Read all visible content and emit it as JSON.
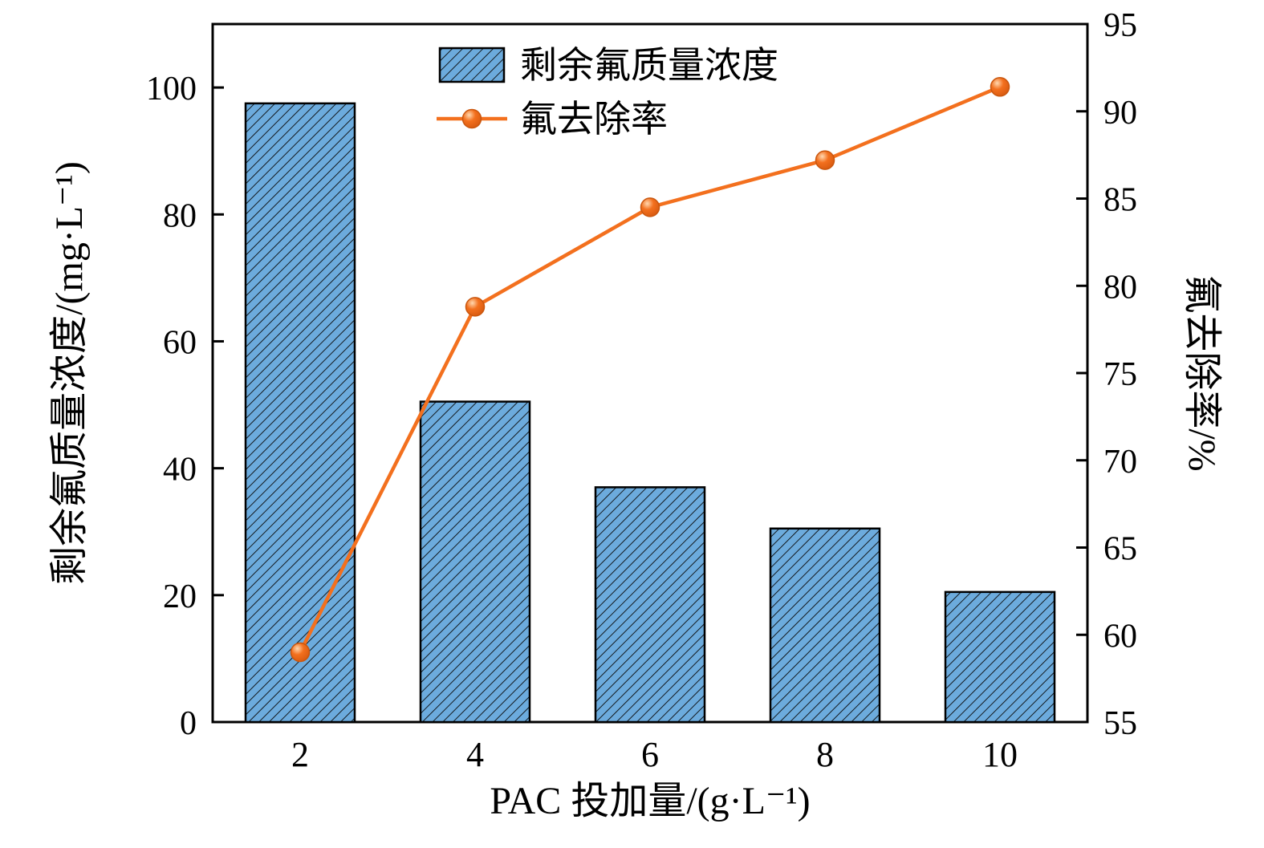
{
  "chart_data": {
    "type": "bar",
    "subtype": "bar+line dual-axis",
    "categories": [
      "2",
      "4",
      "6",
      "8",
      "10"
    ],
    "series": [
      {
        "name": "剩余氟质量浓度",
        "type": "bar",
        "axis": "left",
        "values": [
          97.5,
          50.5,
          37.0,
          30.5,
          20.5
        ],
        "color": "#6cabdd",
        "hatch": "diagonal",
        "hatch_color": "#0a0a0a"
      },
      {
        "name": "氟去除率",
        "type": "line",
        "axis": "right",
        "values": [
          59.0,
          78.8,
          84.5,
          87.2,
          91.4
        ],
        "color": "#f3701e",
        "marker": "circle"
      }
    ],
    "xlabel": "PAC 投加量/(g·L⁻¹)",
    "ylabel_left": "剩余氟质量浓度/(mg·L⁻¹)",
    "ylabel_right": "氟去除率/%",
    "ylim_left": [
      0,
      110
    ],
    "yticks_left": [
      0,
      20,
      40,
      60,
      80,
      100
    ],
    "ylim_right": [
      55,
      95
    ],
    "yticks_right": [
      55,
      60,
      65,
      70,
      75,
      80,
      85,
      90,
      95
    ],
    "grid": "off",
    "legend_position": "top-center",
    "axis_color": "#000000",
    "background_color": "#ffffff"
  }
}
